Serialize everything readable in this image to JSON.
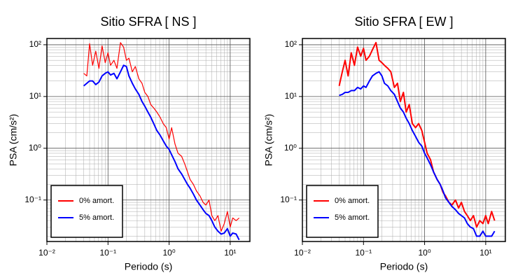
{
  "chart_data": [
    {
      "type": "line",
      "title": "Sitio SFRA [ NS ]",
      "xlabel": "Periodo (s)",
      "ylabel": "PSA (cm/s²)",
      "xscale": "log",
      "yscale": "log",
      "grid": true,
      "minor_grid": true,
      "legend": "lower left",
      "xlim": [
        0.01,
        21
      ],
      "ylim": [
        0.0158,
        132
      ],
      "xticks": [
        {
          "value": 0.01,
          "label": "10⁻²"
        },
        {
          "value": 0.1,
          "label": "10⁻¹"
        },
        {
          "value": 1,
          "label": "10⁰"
        },
        {
          "value": 10,
          "label": "10¹"
        }
      ],
      "yticks": [
        {
          "value": 0.1,
          "label": "10⁻¹"
        },
        {
          "value": 1,
          "label": "10⁰"
        },
        {
          "value": 10,
          "label": "10¹"
        },
        {
          "value": 100,
          "label": "10²"
        }
      ],
      "x": [
        0.04,
        0.045,
        0.05,
        0.056,
        0.063,
        0.071,
        0.08,
        0.09,
        0.1,
        0.11,
        0.125,
        0.14,
        0.16,
        0.18,
        0.2,
        0.22,
        0.25,
        0.28,
        0.32,
        0.36,
        0.4,
        0.45,
        0.5,
        0.56,
        0.63,
        0.71,
        0.8,
        0.9,
        1.0,
        1.1,
        1.25,
        1.4,
        1.6,
        1.8,
        2.0,
        2.2,
        2.5,
        2.8,
        3.2,
        3.6,
        4.0,
        4.5,
        5.0,
        5.6,
        6.3,
        7.1,
        8.0,
        9.0,
        10,
        11,
        12.5,
        14
      ],
      "series": [
        {
          "name": "0% amort.",
          "color": "#ff0000",
          "width": 1.2,
          "values": [
            28,
            25,
            105,
            40,
            75,
            35,
            95,
            45,
            70,
            40,
            50,
            35,
            110,
            90,
            50,
            55,
            30,
            38,
            22,
            18,
            12,
            10,
            7,
            6,
            5,
            4,
            3,
            2.5,
            1.5,
            2.5,
            1.2,
            0.8,
            0.7,
            0.5,
            0.35,
            0.25,
            0.2,
            0.15,
            0.12,
            0.09,
            0.08,
            0.1,
            0.05,
            0.04,
            0.05,
            0.025,
            0.035,
            0.06,
            0.03,
            0.045,
            0.04,
            0.045
          ]
        },
        {
          "name": "5% amort.",
          "color": "#0000ff",
          "width": 2,
          "values": [
            16,
            18,
            20,
            20,
            17,
            19,
            25,
            28,
            30,
            26,
            28,
            22,
            30,
            40,
            38,
            25,
            18,
            14,
            11,
            8,
            6.5,
            5,
            4,
            3,
            2.2,
            1.8,
            1.4,
            1.1,
            0.95,
            0.75,
            0.55,
            0.4,
            0.32,
            0.25,
            0.2,
            0.17,
            0.13,
            0.1,
            0.08,
            0.065,
            0.055,
            0.05,
            0.04,
            0.03,
            0.025,
            0.022,
            0.023,
            0.028,
            0.02,
            0.023,
            0.022,
            0.017
          ]
        }
      ]
    },
    {
      "type": "line",
      "title": "Sitio SFRA [ EW ]",
      "xlabel": "Periodo (s)",
      "ylabel": "PSA (cm/s²)",
      "xscale": "log",
      "yscale": "log",
      "grid": true,
      "minor_grid": true,
      "legend": "lower left",
      "xlim": [
        0.01,
        21
      ],
      "ylim": [
        0.0158,
        132
      ],
      "xticks": [
        {
          "value": 0.01,
          "label": "10⁻²"
        },
        {
          "value": 0.1,
          "label": "10⁻¹"
        },
        {
          "value": 1,
          "label": "10⁰"
        },
        {
          "value": 10,
          "label": "10¹"
        }
      ],
      "yticks": [
        {
          "value": 0.1,
          "label": "10⁻¹"
        },
        {
          "value": 1,
          "label": "10⁰"
        },
        {
          "value": 10,
          "label": "10¹"
        },
        {
          "value": 100,
          "label": "10²"
        }
      ],
      "x": [
        0.04,
        0.045,
        0.05,
        0.056,
        0.063,
        0.071,
        0.08,
        0.09,
        0.1,
        0.11,
        0.125,
        0.14,
        0.16,
        0.18,
        0.2,
        0.22,
        0.25,
        0.28,
        0.32,
        0.36,
        0.4,
        0.45,
        0.5,
        0.56,
        0.63,
        0.71,
        0.8,
        0.9,
        1.0,
        1.1,
        1.25,
        1.4,
        1.6,
        1.8,
        2.0,
        2.2,
        2.5,
        2.8,
        3.2,
        3.6,
        4.0,
        4.5,
        5.0,
        5.6,
        6.3,
        7.1,
        8.0,
        9.0,
        10,
        11,
        12.5,
        14
      ],
      "series": [
        {
          "name": "0% amort.",
          "color": "#ff0000",
          "width": 2,
          "values": [
            16,
            30,
            50,
            25,
            70,
            40,
            90,
            60,
            85,
            50,
            60,
            80,
            110,
            50,
            45,
            40,
            35,
            30,
            15,
            18,
            8,
            12,
            5,
            7,
            3,
            2.5,
            3,
            2.2,
            1.3,
            0.8,
            0.6,
            0.35,
            0.25,
            0.2,
            0.14,
            0.12,
            0.09,
            0.08,
            0.1,
            0.07,
            0.09,
            0.06,
            0.05,
            0.04,
            0.05,
            0.03,
            0.04,
            0.035,
            0.05,
            0.035,
            0.06,
            0.04
          ]
        },
        {
          "name": "5% amort.",
          "color": "#0000ff",
          "width": 2,
          "values": [
            10.5,
            11,
            12,
            12,
            13,
            13,
            15,
            14,
            16,
            15,
            20,
            25,
            28,
            30,
            25,
            18,
            16,
            13,
            11,
            8,
            6,
            5,
            3.8,
            3,
            2.2,
            1.7,
            1.3,
            1.1,
            0.8,
            0.65,
            0.48,
            0.35,
            0.25,
            0.2,
            0.15,
            0.11,
            0.09,
            0.075,
            0.065,
            0.055,
            0.05,
            0.045,
            0.035,
            0.03,
            0.028,
            0.02,
            0.02,
            0.025,
            0.02,
            0.02,
            0.02,
            0.025
          ]
        }
      ]
    }
  ]
}
